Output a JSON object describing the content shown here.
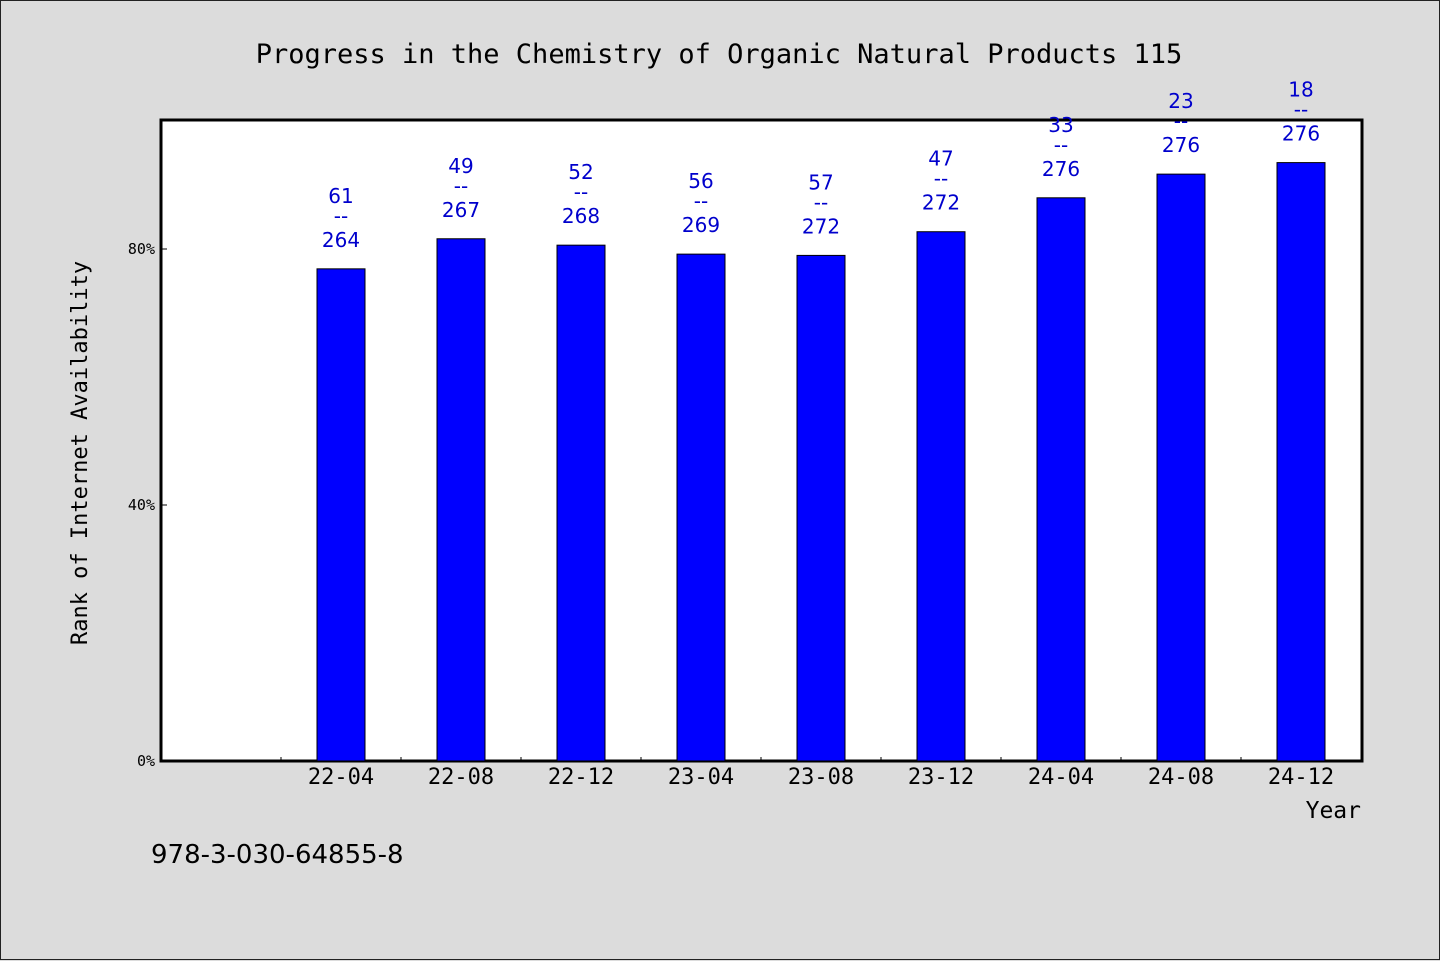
{
  "chart_data": {
    "type": "bar",
    "title": "Progress in the Chemistry of Organic Natural Products 115",
    "xlabel": "Year",
    "ylabel": "Rank of Internet Availability",
    "footer": "978-3-030-64855-8",
    "categories": [
      "22-04",
      "22-08",
      "22-12",
      "23-04",
      "23-08",
      "23-12",
      "24-04",
      "24-08",
      "24-12"
    ],
    "values": [
      76.9,
      81.6,
      80.6,
      79.2,
      79.0,
      82.7,
      88.0,
      91.7,
      93.5
    ],
    "rank": [
      "61",
      "49",
      "52",
      "56",
      "57",
      "47",
      "33",
      "23",
      "18"
    ],
    "total": [
      "264",
      "267",
      "268",
      "269",
      "272",
      "272",
      "276",
      "276",
      "276"
    ],
    "separator": "--",
    "ylim": [
      0,
      100
    ],
    "yticks": [
      "0%",
      "40%",
      "80%"
    ],
    "ytick_values": [
      0,
      40,
      80
    ],
    "bar_color": "#0000ff",
    "label_color": "#0000cc",
    "grid": false
  }
}
